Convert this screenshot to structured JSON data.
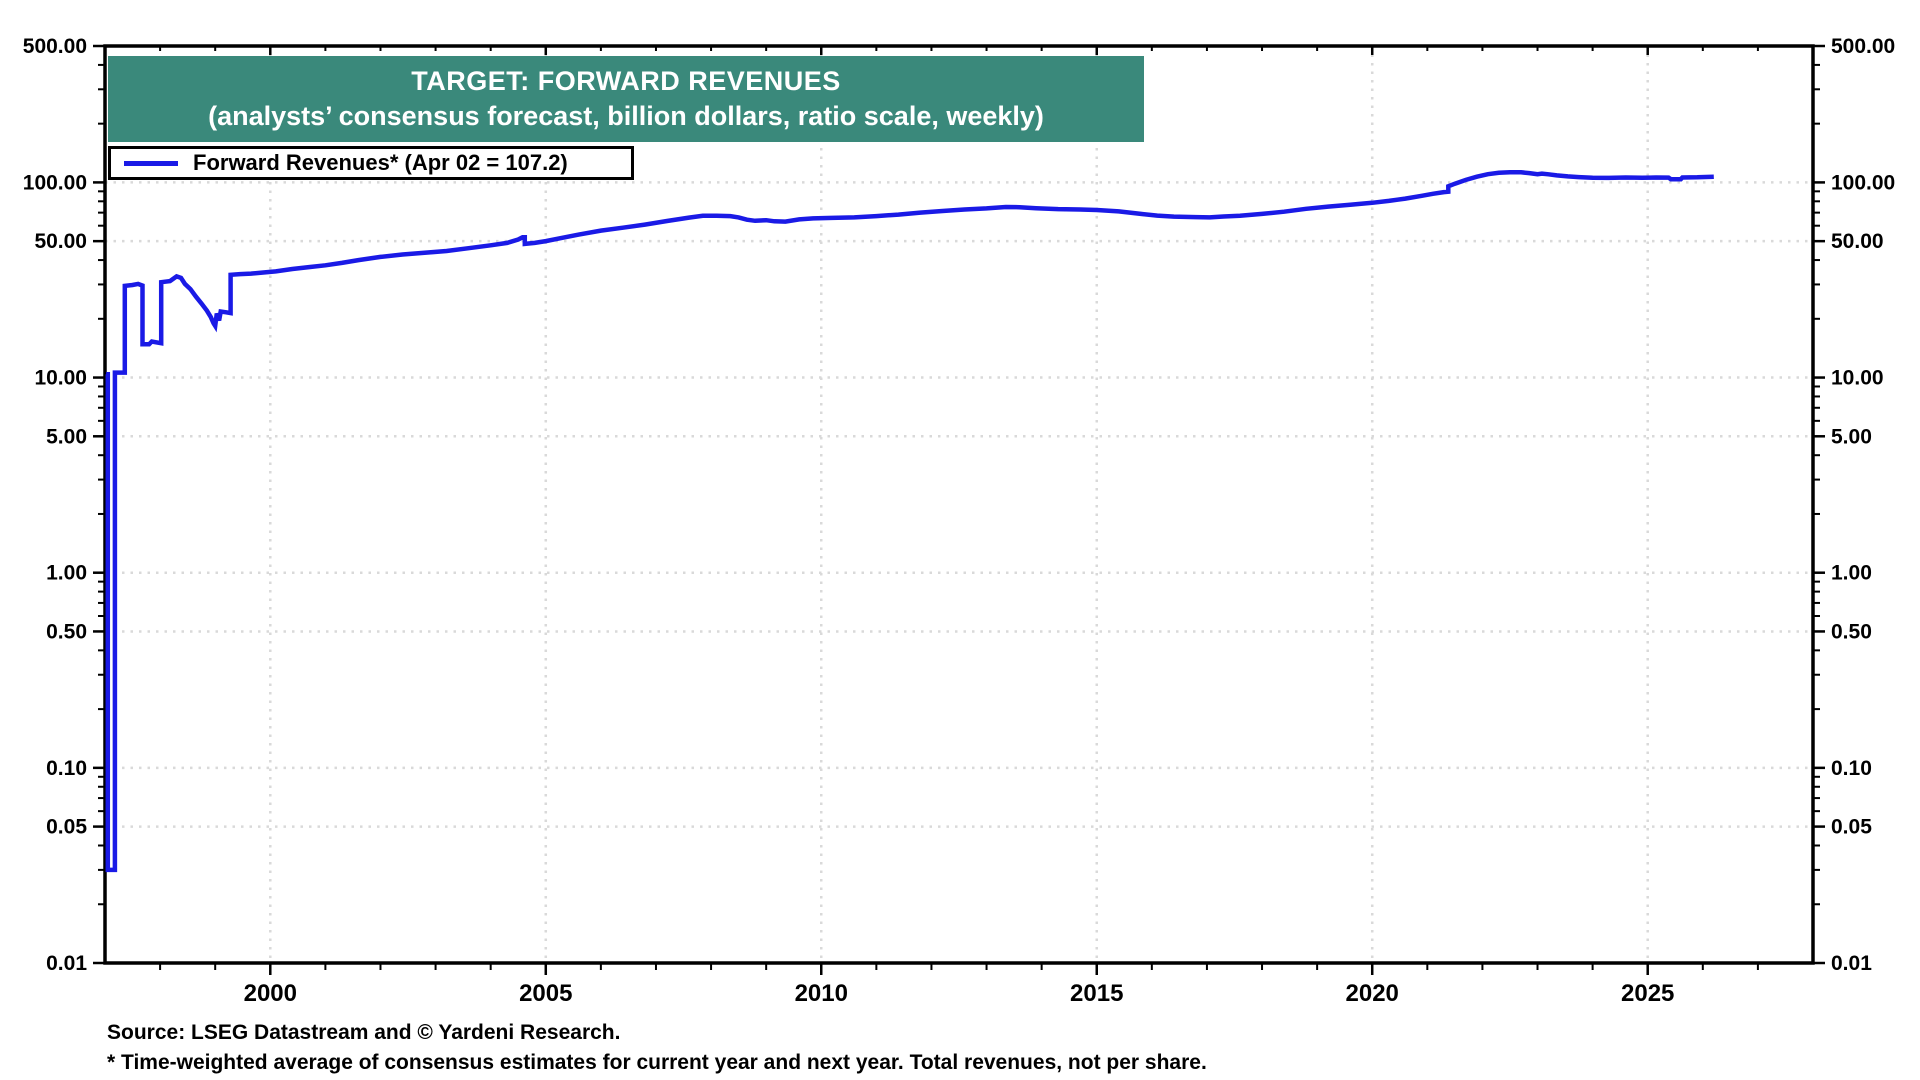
{
  "chart_data": {
    "type": "line",
    "title": "TARGET: FORWARD REVENUES",
    "subtitle": "(analysts’ consensus forecast, billion dollars, ratio scale, weekly)",
    "legend": {
      "label": "Forward Revenues* (Apr 02 = 107.2)"
    },
    "source": "Source: LSEG Datastream and © Yardeni Research.",
    "footnote": "* Time-weighted average of consensus estimates for current year and next year. Total revenues, not per share.",
    "colors": {
      "line": "#1a1ae6",
      "title_bg": "#3a897b",
      "title_text": "#ffffff",
      "grid": "#d9d9d9",
      "axis": "#000000"
    },
    "y_axis": {
      "scale": "log",
      "min": 0.01,
      "max": 500,
      "labeled_ticks": [
        500,
        100,
        50,
        10,
        5,
        1,
        0.5,
        0.1,
        0.05,
        0.01
      ],
      "gridline_ticks": [
        100,
        50,
        10,
        5,
        1,
        0.5,
        0.1,
        0.05
      ],
      "label_format": "fixed2",
      "sides": "both"
    },
    "x_axis": {
      "min": 1997.0,
      "max": 2028.0,
      "labeled_ticks": [
        2000,
        2005,
        2010,
        2015,
        2020,
        2025
      ],
      "minor_tick_interval_years": 1,
      "gridlines_at_labeled_ticks": true
    },
    "series": [
      {
        "name": "Forward Revenues*",
        "latest": {
          "date_label": "Apr 02",
          "value": 107.2
        },
        "points": [
          [
            1997.02,
            10.4
          ],
          [
            1997.05,
            10.4
          ],
          [
            1997.05,
            0.03
          ],
          [
            1997.18,
            0.03
          ],
          [
            1997.18,
            10.6
          ],
          [
            1997.36,
            10.6
          ],
          [
            1997.36,
            29.5
          ],
          [
            1997.5,
            29.8
          ],
          [
            1997.6,
            30.2
          ],
          [
            1997.68,
            29.6
          ],
          [
            1997.68,
            14.8
          ],
          [
            1997.8,
            14.8
          ],
          [
            1997.85,
            15.3
          ],
          [
            1998.02,
            15.0
          ],
          [
            1998.02,
            30.8
          ],
          [
            1998.18,
            31.2
          ],
          [
            1998.3,
            33.0
          ],
          [
            1998.38,
            32.4
          ],
          [
            1998.45,
            30.2
          ],
          [
            1998.55,
            28.4
          ],
          [
            1998.65,
            26.0
          ],
          [
            1998.75,
            24.0
          ],
          [
            1998.85,
            22.0
          ],
          [
            1998.92,
            20.4
          ],
          [
            1998.97,
            19.0
          ],
          [
            1999.0,
            18.4
          ],
          [
            1999.03,
            21.3
          ],
          [
            1999.07,
            19.6
          ],
          [
            1999.1,
            21.8
          ],
          [
            1999.2,
            21.6
          ],
          [
            1999.28,
            21.4
          ],
          [
            1999.28,
            33.6
          ],
          [
            1999.45,
            33.9
          ],
          [
            1999.65,
            34.1
          ],
          [
            1999.85,
            34.5
          ],
          [
            2000.1,
            35.0
          ],
          [
            2000.4,
            36.0
          ],
          [
            2000.7,
            36.8
          ],
          [
            2001.0,
            37.6
          ],
          [
            2001.3,
            38.7
          ],
          [
            2001.6,
            40.0
          ],
          [
            2002.0,
            41.5
          ],
          [
            2002.4,
            42.7
          ],
          [
            2002.8,
            43.6
          ],
          [
            2003.2,
            44.5
          ],
          [
            2003.6,
            46.0
          ],
          [
            2004.0,
            47.6
          ],
          [
            2004.3,
            49.0
          ],
          [
            2004.5,
            51.0
          ],
          [
            2004.58,
            52.4
          ],
          [
            2004.62,
            52.4
          ],
          [
            2004.62,
            48.4
          ],
          [
            2004.8,
            49.0
          ],
          [
            2005.0,
            50.0
          ],
          [
            2005.3,
            52.0
          ],
          [
            2005.6,
            54.0
          ],
          [
            2006.0,
            56.6
          ],
          [
            2006.4,
            58.6
          ],
          [
            2006.8,
            60.8
          ],
          [
            2007.2,
            63.4
          ],
          [
            2007.6,
            66.0
          ],
          [
            2007.85,
            67.4
          ],
          [
            2008.1,
            67.5
          ],
          [
            2008.35,
            67.2
          ],
          [
            2008.5,
            66.2
          ],
          [
            2008.65,
            64.4
          ],
          [
            2008.8,
            63.6
          ],
          [
            2009.0,
            64.0
          ],
          [
            2009.15,
            63.2
          ],
          [
            2009.35,
            63.0
          ],
          [
            2009.6,
            64.6
          ],
          [
            2009.85,
            65.4
          ],
          [
            2010.2,
            65.8
          ],
          [
            2010.6,
            66.2
          ],
          [
            2011.0,
            67.2
          ],
          [
            2011.4,
            68.4
          ],
          [
            2011.8,
            70.0
          ],
          [
            2012.2,
            71.4
          ],
          [
            2012.6,
            72.6
          ],
          [
            2013.0,
            73.6
          ],
          [
            2013.35,
            74.8
          ],
          [
            2013.6,
            74.6
          ],
          [
            2013.9,
            73.8
          ],
          [
            2014.3,
            73.0
          ],
          [
            2014.7,
            72.6
          ],
          [
            2015.0,
            72.2
          ],
          [
            2015.4,
            71.0
          ],
          [
            2015.8,
            69.0
          ],
          [
            2016.1,
            67.6
          ],
          [
            2016.4,
            66.8
          ],
          [
            2016.8,
            66.4
          ],
          [
            2017.05,
            66.2
          ],
          [
            2017.3,
            66.9
          ],
          [
            2017.6,
            67.4
          ],
          [
            2018.0,
            69.0
          ],
          [
            2018.4,
            70.8
          ],
          [
            2018.8,
            73.2
          ],
          [
            2019.2,
            75.2
          ],
          [
            2019.6,
            76.8
          ],
          [
            2020.0,
            78.6
          ],
          [
            2020.3,
            80.4
          ],
          [
            2020.6,
            82.6
          ],
          [
            2020.9,
            85.4
          ],
          [
            2021.1,
            87.4
          ],
          [
            2021.3,
            89.2
          ],
          [
            2021.38,
            89.6
          ],
          [
            2021.38,
            95.5
          ],
          [
            2021.5,
            98.5
          ],
          [
            2021.7,
            103.0
          ],
          [
            2021.9,
            107.0
          ],
          [
            2022.1,
            110.2
          ],
          [
            2022.3,
            112.0
          ],
          [
            2022.5,
            112.8
          ],
          [
            2022.7,
            112.6
          ],
          [
            2022.85,
            111.6
          ],
          [
            2023.0,
            110.2
          ],
          [
            2023.08,
            111.0
          ],
          [
            2023.2,
            110.0
          ],
          [
            2023.35,
            108.6
          ],
          [
            2023.55,
            107.4
          ],
          [
            2023.75,
            106.4
          ],
          [
            2024.0,
            105.7
          ],
          [
            2024.3,
            105.5
          ],
          [
            2024.6,
            105.9
          ],
          [
            2024.9,
            105.6
          ],
          [
            2025.15,
            105.9
          ],
          [
            2025.38,
            105.8
          ],
          [
            2025.42,
            103.9
          ],
          [
            2025.6,
            103.9
          ],
          [
            2025.63,
            106.0
          ],
          [
            2025.9,
            106.2
          ],
          [
            2026.2,
            107.0
          ]
        ]
      }
    ]
  }
}
